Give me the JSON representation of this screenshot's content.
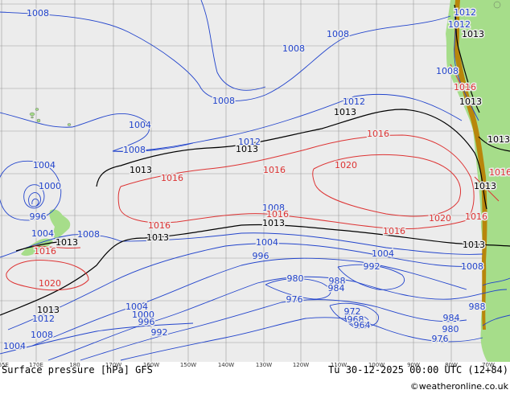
{
  "footer": {
    "product": "Surface pressure [hPa] GFS",
    "valid_time": "Tu 30-12-2025 00:00 UTC (12+84)",
    "credit": "©weatheronline.co.uk"
  },
  "longitude_ticks": [
    "165E",
    "170E",
    "180",
    "170W",
    "160W",
    "150W",
    "140W",
    "130W",
    "120W",
    "110W",
    "100W",
    "90W",
    "80W",
    "70W"
  ],
  "colors": {
    "ocean": "#ececec",
    "land": "#a6dd8a",
    "terrain": "#b8860b",
    "low_pressure": "#2244cc",
    "normal_pressure": "#000000",
    "high_pressure": "#dd3333",
    "grid": "#9a9a9a"
  },
  "isobar_labels": [
    {
      "text": "1008",
      "kind": "low"
    },
    {
      "text": "1008",
      "kind": "low"
    },
    {
      "text": "1008",
      "kind": "low"
    },
    {
      "text": "1008",
      "kind": "low"
    },
    {
      "text": "1008",
      "kind": "low"
    },
    {
      "text": "1004",
      "kind": "low"
    },
    {
      "text": "1004",
      "kind": "low"
    },
    {
      "text": "1000",
      "kind": "low"
    },
    {
      "text": "996",
      "kind": "low"
    },
    {
      "text": "1004",
      "kind": "low"
    },
    {
      "text": "1008",
      "kind": "low"
    },
    {
      "text": "1004",
      "kind": "low"
    },
    {
      "text": "1004",
      "kind": "low"
    },
    {
      "text": "1008",
      "kind": "low"
    },
    {
      "text": "996",
      "kind": "low"
    },
    {
      "text": "980",
      "kind": "low"
    },
    {
      "text": "988",
      "kind": "low"
    },
    {
      "text": "984",
      "kind": "low"
    },
    {
      "text": "992",
      "kind": "low"
    },
    {
      "text": "976",
      "kind": "low"
    },
    {
      "text": "1004",
      "kind": "low"
    },
    {
      "text": "1000",
      "kind": "low"
    },
    {
      "text": "996",
      "kind": "low"
    },
    {
      "text": "992",
      "kind": "low"
    },
    {
      "text": "1012",
      "kind": "low"
    },
    {
      "text": "1008",
      "kind": "low"
    },
    {
      "text": "1004",
      "kind": "low"
    },
    {
      "text": "972",
      "kind": "low"
    },
    {
      "text": "968",
      "kind": "low"
    },
    {
      "text": "964",
      "kind": "low"
    },
    {
      "text": "984",
      "kind": "low"
    },
    {
      "text": "980",
      "kind": "low"
    },
    {
      "text": "976",
      "kind": "low"
    },
    {
      "text": "988",
      "kind": "low"
    },
    {
      "text": "1008",
      "kind": "low"
    },
    {
      "text": "1012",
      "kind": "low"
    },
    {
      "text": "1012",
      "kind": "low"
    },
    {
      "text": "1012",
      "kind": "low"
    },
    {
      "text": "1012",
      "kind": "low"
    },
    {
      "text": "1008",
      "kind": "low"
    },
    {
      "text": "1013",
      "kind": "normal"
    },
    {
      "text": "1013",
      "kind": "normal"
    },
    {
      "text": "1013",
      "kind": "normal"
    },
    {
      "text": "1013",
      "kind": "normal"
    },
    {
      "text": "1013",
      "kind": "normal"
    },
    {
      "text": "1013",
      "kind": "normal"
    },
    {
      "text": "1013",
      "kind": "normal"
    },
    {
      "text": "1013",
      "kind": "normal"
    },
    {
      "text": "1013",
      "kind": "normal"
    },
    {
      "text": "1013",
      "kind": "normal"
    },
    {
      "text": "1013",
      "kind": "normal"
    },
    {
      "text": "1013",
      "kind": "normal"
    },
    {
      "text": "1016",
      "kind": "high"
    },
    {
      "text": "1016",
      "kind": "high"
    },
    {
      "text": "1016",
      "kind": "high"
    },
    {
      "text": "1016",
      "kind": "high"
    },
    {
      "text": "1016",
      "kind": "high"
    },
    {
      "text": "1016",
      "kind": "high"
    },
    {
      "text": "1016",
      "kind": "high"
    },
    {
      "text": "1016",
      "kind": "high"
    },
    {
      "text": "1016",
      "kind": "high"
    },
    {
      "text": "1020",
      "kind": "high"
    },
    {
      "text": "1020",
      "kind": "high"
    },
    {
      "text": "1020",
      "kind": "high"
    },
    {
      "text": "1016",
      "kind": "high"
    }
  ]
}
